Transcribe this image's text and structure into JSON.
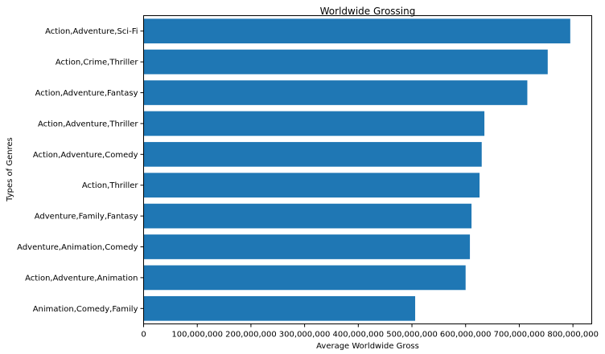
{
  "chart_data": {
    "type": "bar",
    "orientation": "horizontal",
    "title": "Worldwide Grossing",
    "xlabel": "Average Worldwide Gross",
    "ylabel": "Types of Genres",
    "categories": [
      "Action,Adventure,Sci-Fi",
      "Action,Crime,Thriller",
      "Action,Adventure,Fantasy",
      "Action,Adventure,Thriller",
      "Action,Adventure,Comedy",
      "Action,Thriller",
      "Adventure,Family,Fantasy",
      "Adventure,Animation,Comedy",
      "Action,Adventure,Animation",
      "Animation,Comedy,Family"
    ],
    "values": [
      795000000,
      753000000,
      715000000,
      635000000,
      630000000,
      626000000,
      611000000,
      608000000,
      600000000,
      506000000
    ],
    "xlim": [
      0,
      835000000
    ],
    "xticks": [
      0,
      100000000,
      200000000,
      300000000,
      400000000,
      500000000,
      600000000,
      700000000,
      800000000
    ],
    "xtick_labels": [
      "0",
      "100,000,000",
      "200,000,000",
      "300,000,000",
      "400,000,000",
      "500,000,000",
      "600,000,000",
      "700,000,000",
      "800,000,000"
    ],
    "bar_color": "#1f77b4",
    "grid": false
  }
}
